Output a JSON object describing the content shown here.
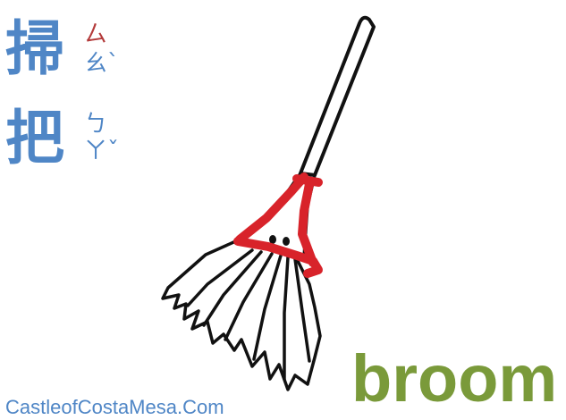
{
  "card": {
    "hanzi": [
      "掃",
      "把"
    ],
    "zhuyin": [
      {
        "first": "ㄙ",
        "second": "ㄠˋ"
      },
      {
        "first": "ㄅ",
        "second": "ㄚˇ"
      }
    ],
    "english": "broom",
    "credit": "CastleofCostaMesa.Com"
  },
  "colors": {
    "hanzi": "#4f86c6",
    "zhuyin_initial_red": "#b33a3a",
    "english": "#7a9a3a",
    "binding_red": "#d8232a",
    "ink": "#111111"
  },
  "illustration": {
    "subject": "broom-illustration"
  }
}
